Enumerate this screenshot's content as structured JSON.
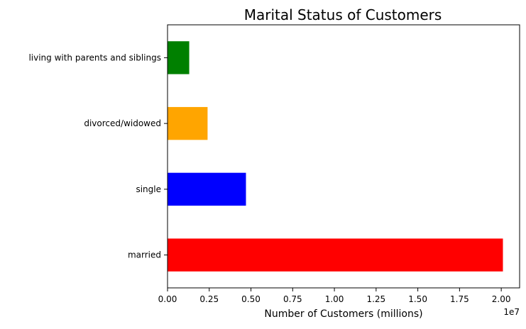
{
  "chart_data": {
    "type": "bar",
    "orientation": "horizontal",
    "title": "Marital Status of Customers",
    "xlabel": "Number of Customers (millions)",
    "ylabel": "",
    "x_offset_label": "1e7",
    "xlim": [
      0,
      2.11
    ],
    "x_ticks": [
      "0.00",
      "0.25",
      "0.50",
      "0.75",
      "1.00",
      "1.25",
      "1.50",
      "1.75",
      "2.00"
    ],
    "categories": [
      "married",
      "single",
      "divorced/widowed",
      "living with parents and siblings"
    ],
    "values": [
      2.01,
      0.47,
      0.24,
      0.13
    ],
    "colors": [
      "#ff0000",
      "#0000ff",
      "#ffa500",
      "#008000"
    ],
    "grid": false,
    "legend": "none"
  }
}
